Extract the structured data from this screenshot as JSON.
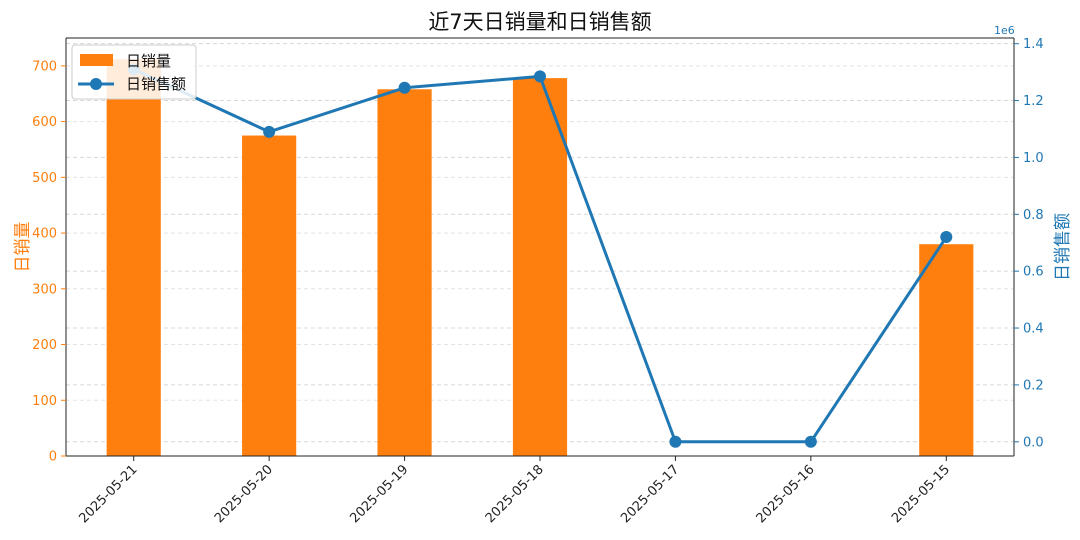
{
  "chart_data": {
    "type": "bar+line",
    "title": "近7天日销量和日销售额",
    "categories": [
      "2025-05-21",
      "2025-05-20",
      "2025-05-19",
      "2025-05-18",
      "2025-05-17",
      "2025-05-16",
      "2025-05-15"
    ],
    "series": [
      {
        "name": "日销量",
        "type": "bar",
        "axis": "left",
        "color": "#ff7f0e",
        "values": [
          712,
          575,
          658,
          678,
          0,
          0,
          380
        ]
      },
      {
        "name": "日销售额",
        "type": "line",
        "axis": "right",
        "color": "#1f77b4",
        "values": [
          1310000,
          1090000,
          1245000,
          1285000,
          0,
          0,
          720000
        ]
      }
    ],
    "y_left": {
      "label": "日销量",
      "color": "#ff7f0e",
      "lim": [
        0,
        750
      ],
      "ticks": [
        0,
        100,
        200,
        300,
        400,
        500,
        600,
        700
      ]
    },
    "y_right": {
      "label": "日销售额",
      "color": "#1f77b4",
      "lim": [
        -50000,
        1420000
      ],
      "ticks": [
        0.0,
        0.2,
        0.4,
        0.6,
        0.8,
        1.0,
        1.2,
        1.4
      ],
      "multiplier_label": "1e6"
    },
    "grid": true,
    "legend_position": "top-left"
  }
}
